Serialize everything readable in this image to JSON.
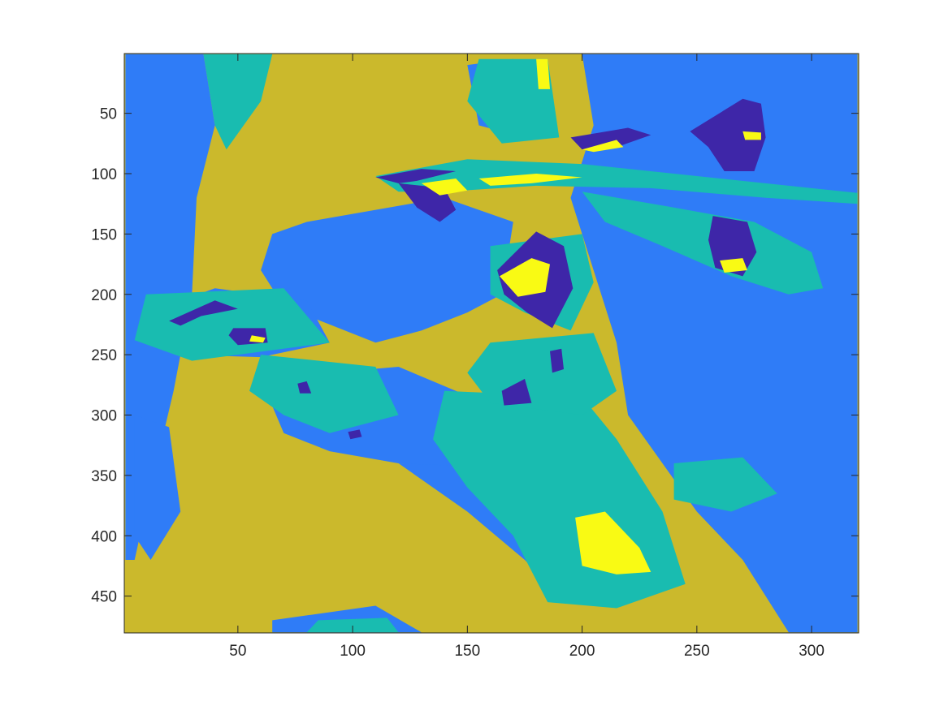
{
  "chart_data": {
    "type": "heatmap",
    "title": "",
    "xlabel": "",
    "ylabel": "",
    "xlim": [
      0.5,
      320.5
    ],
    "ylim": [
      0.5,
      480.5
    ],
    "y_reversed": true,
    "grid": false,
    "colormap": [
      "#3e26a8",
      "#2f7cf7",
      "#19bcb0",
      "#cbb92c",
      "#f9fa14"
    ],
    "x_ticks": [
      50,
      100,
      150,
      200,
      250,
      300
    ],
    "y_ticks": [
      50,
      100,
      150,
      200,
      250,
      300,
      350,
      400,
      450
    ],
    "x_tick_labels": [
      "50",
      "100",
      "150",
      "200",
      "250",
      "300"
    ],
    "y_tick_labels": [
      "50",
      "100",
      "150",
      "200",
      "250",
      "300",
      "350",
      "400",
      "450"
    ],
    "regions": [
      {
        "level": 1,
        "points": [
          [
            1,
            1
          ],
          [
            35,
            1
          ],
          [
            40,
            60
          ],
          [
            32,
            120
          ],
          [
            30,
            200
          ],
          [
            22,
            280
          ],
          [
            12,
            360
          ],
          [
            5,
            420
          ],
          [
            1,
            420
          ]
        ]
      },
      {
        "level": 1,
        "points": [
          [
            200,
            1
          ],
          [
            320,
            1
          ],
          [
            320,
            480
          ],
          [
            290,
            480
          ],
          [
            270,
            420
          ],
          [
            250,
            380
          ],
          [
            235,
            340
          ],
          [
            220,
            300
          ],
          [
            215,
            240
          ],
          [
            205,
            180
          ],
          [
            195,
            120
          ],
          [
            205,
            60
          ]
        ]
      },
      {
        "level": 1,
        "points": [
          [
            80,
            140
          ],
          [
            140,
            120
          ],
          [
            170,
            140
          ],
          [
            165,
            200
          ],
          [
            150,
            215
          ],
          [
            130,
            230
          ],
          [
            110,
            240
          ],
          [
            90,
            225
          ],
          [
            70,
            210
          ],
          [
            60,
            180
          ],
          [
            65,
            150
          ]
        ]
      },
      {
        "level": 1,
        "points": [
          [
            40,
            195
          ],
          [
            80,
            205
          ],
          [
            90,
            240
          ],
          [
            60,
            252
          ],
          [
            25,
            250
          ],
          [
            10,
            232
          ],
          [
            15,
            212
          ]
        ]
      },
      {
        "level": 1,
        "points": [
          [
            60,
            270
          ],
          [
            120,
            260
          ],
          [
            170,
            300
          ],
          [
            190,
            330
          ],
          [
            160,
            345
          ],
          [
            120,
            340
          ],
          [
            90,
            330
          ],
          [
            70,
            315
          ]
        ]
      },
      {
        "level": 1,
        "points": [
          [
            120,
            340
          ],
          [
            185,
            345
          ],
          [
            230,
            375
          ],
          [
            240,
            430
          ],
          [
            220,
            455
          ],
          [
            190,
            450
          ],
          [
            175,
            420
          ],
          [
            150,
            380
          ]
        ]
      },
      {
        "level": 1,
        "points": [
          [
            5,
            300
          ],
          [
            20,
            310
          ],
          [
            25,
            380
          ],
          [
            12,
            420
          ],
          [
            5,
            400
          ]
        ]
      },
      {
        "level": 1,
        "points": [
          [
            65,
            470
          ],
          [
            110,
            458
          ],
          [
            130,
            480
          ],
          [
            65,
            480
          ]
        ]
      },
      {
        "level": 1,
        "points": [
          [
            150,
            10
          ],
          [
            170,
            5
          ],
          [
            185,
            40
          ],
          [
            175,
            70
          ],
          [
            155,
            60
          ]
        ]
      },
      {
        "level": 2,
        "points": [
          [
            35,
            1
          ],
          [
            65,
            1
          ],
          [
            60,
            40
          ],
          [
            45,
            80
          ],
          [
            40,
            60
          ]
        ]
      },
      {
        "level": 2,
        "points": [
          [
            155,
            5
          ],
          [
            185,
            5
          ],
          [
            190,
            70
          ],
          [
            165,
            75
          ],
          [
            150,
            40
          ]
        ]
      },
      {
        "level": 2,
        "points": [
          [
            110,
            102
          ],
          [
            150,
            88
          ],
          [
            200,
            92
          ],
          [
            240,
            100
          ],
          [
            290,
            110
          ],
          [
            320,
            116
          ],
          [
            320,
            125
          ],
          [
            280,
            120
          ],
          [
            230,
            112
          ],
          [
            180,
            110
          ],
          [
            140,
            115
          ],
          [
            120,
            115
          ]
        ]
      },
      {
        "level": 2,
        "points": [
          [
            140,
            280
          ],
          [
            200,
            285
          ],
          [
            215,
            320
          ],
          [
            235,
            380
          ],
          [
            245,
            440
          ],
          [
            215,
            460
          ],
          [
            185,
            455
          ],
          [
            170,
            400
          ],
          [
            150,
            360
          ],
          [
            135,
            320
          ]
        ]
      },
      {
        "level": 2,
        "points": [
          [
            160,
            160
          ],
          [
            200,
            150
          ],
          [
            205,
            190
          ],
          [
            195,
            230
          ],
          [
            175,
            215
          ],
          [
            160,
            200
          ]
        ]
      },
      {
        "level": 2,
        "points": [
          [
            10,
            200
          ],
          [
            70,
            195
          ],
          [
            90,
            240
          ],
          [
            30,
            255
          ],
          [
            5,
            238
          ]
        ]
      },
      {
        "level": 2,
        "points": [
          [
            60,
            250
          ],
          [
            110,
            260
          ],
          [
            120,
            300
          ],
          [
            90,
            315
          ],
          [
            70,
            300
          ],
          [
            55,
            280
          ]
        ]
      },
      {
        "level": 2,
        "points": [
          [
            160,
            240
          ],
          [
            205,
            232
          ],
          [
            215,
            280
          ],
          [
            200,
            300
          ],
          [
            160,
            290
          ],
          [
            150,
            265
          ]
        ]
      },
      {
        "level": 2,
        "points": [
          [
            240,
            340
          ],
          [
            270,
            335
          ],
          [
            285,
            365
          ],
          [
            265,
            380
          ],
          [
            240,
            370
          ]
        ]
      },
      {
        "level": 2,
        "points": [
          [
            85,
            470
          ],
          [
            115,
            468
          ],
          [
            120,
            480
          ],
          [
            80,
            480
          ]
        ]
      },
      {
        "level": 2,
        "points": [
          [
            200,
            115
          ],
          [
            240,
            128
          ],
          [
            275,
            140
          ],
          [
            300,
            165
          ],
          [
            305,
            195
          ],
          [
            290,
            200
          ],
          [
            265,
            185
          ],
          [
            235,
            160
          ],
          [
            210,
            140
          ]
        ]
      },
      {
        "level": 0,
        "points": [
          [
            110,
            103
          ],
          [
            130,
            96
          ],
          [
            145,
            98
          ],
          [
            128,
            106
          ],
          [
            120,
            108
          ]
        ]
      },
      {
        "level": 0,
        "points": [
          [
            120,
            108
          ],
          [
            140,
            112
          ],
          [
            145,
            130
          ],
          [
            138,
            140
          ],
          [
            128,
            128
          ]
        ]
      },
      {
        "level": 0,
        "points": [
          [
            195,
            70
          ],
          [
            220,
            62
          ],
          [
            230,
            68
          ],
          [
            215,
            78
          ],
          [
            200,
            80
          ]
        ]
      },
      {
        "level": 0,
        "points": [
          [
            247,
            65
          ],
          [
            270,
            38
          ],
          [
            278,
            42
          ],
          [
            280,
            70
          ],
          [
            275,
            98
          ],
          [
            262,
            98
          ],
          [
            255,
            78
          ]
        ]
      },
      {
        "level": 0,
        "points": [
          [
            257,
            135
          ],
          [
            272,
            140
          ],
          [
            276,
            165
          ],
          [
            270,
            185
          ],
          [
            258,
            178
          ],
          [
            255,
            155
          ]
        ]
      },
      {
        "level": 0,
        "points": [
          [
            163,
            180
          ],
          [
            180,
            148
          ],
          [
            192,
            160
          ],
          [
            196,
            195
          ],
          [
            187,
            228
          ],
          [
            176,
            215
          ],
          [
            166,
            200
          ]
        ]
      },
      {
        "level": 0,
        "points": [
          [
            20,
            222
          ],
          [
            40,
            205
          ],
          [
            50,
            212
          ],
          [
            34,
            218
          ],
          [
            25,
            226
          ]
        ]
      },
      {
        "level": 0,
        "points": [
          [
            48,
            228
          ],
          [
            62,
            228
          ],
          [
            63,
            240
          ],
          [
            50,
            242
          ],
          [
            46,
            234
          ]
        ]
      },
      {
        "level": 0,
        "points": [
          [
            165,
            280
          ],
          [
            175,
            270
          ],
          [
            178,
            290
          ],
          [
            166,
            292
          ]
        ]
      },
      {
        "level": 0,
        "points": [
          [
            186,
            247
          ],
          [
            191,
            245
          ],
          [
            192,
            262
          ],
          [
            187,
            265
          ]
        ]
      },
      {
        "level": 0,
        "points": [
          [
            76,
            274
          ],
          [
            80,
            272
          ],
          [
            82,
            282
          ],
          [
            77,
            282
          ]
        ]
      },
      {
        "level": 0,
        "points": [
          [
            98,
            314
          ],
          [
            103,
            312
          ],
          [
            104,
            318
          ],
          [
            99,
            320
          ]
        ]
      },
      {
        "level": 4,
        "points": [
          [
            164,
            185
          ],
          [
            178,
            170
          ],
          [
            186,
            175
          ],
          [
            184,
            198
          ],
          [
            172,
            202
          ]
        ]
      },
      {
        "level": 4,
        "points": [
          [
            200,
            80
          ],
          [
            215,
            72
          ],
          [
            218,
            78
          ],
          [
            205,
            82
          ]
        ]
      },
      {
        "level": 4,
        "points": [
          [
            130,
            108
          ],
          [
            145,
            104
          ],
          [
            150,
            114
          ],
          [
            138,
            118
          ]
        ]
      },
      {
        "level": 4,
        "points": [
          [
            155,
            104
          ],
          [
            180,
            100
          ],
          [
            200,
            103
          ],
          [
            178,
            108
          ],
          [
            160,
            110
          ]
        ]
      },
      {
        "level": 4,
        "points": [
          [
            56,
            234
          ],
          [
            62,
            236
          ],
          [
            61,
            240
          ],
          [
            55,
            239
          ]
        ]
      },
      {
        "level": 4,
        "points": [
          [
            197,
            385
          ],
          [
            210,
            380
          ],
          [
            225,
            410
          ],
          [
            230,
            430
          ],
          [
            215,
            432
          ],
          [
            200,
            425
          ]
        ]
      },
      {
        "level": 4,
        "points": [
          [
            260,
            172
          ],
          [
            270,
            170
          ],
          [
            272,
            180
          ],
          [
            262,
            182
          ]
        ]
      },
      {
        "level": 4,
        "points": [
          [
            180,
            5
          ],
          [
            185,
            5
          ],
          [
            186,
            30
          ],
          [
            181,
            30
          ]
        ]
      },
      {
        "level": 4,
        "points": [
          [
            270,
            65
          ],
          [
            278,
            66
          ],
          [
            278,
            72
          ],
          [
            271,
            72
          ]
        ]
      }
    ]
  }
}
